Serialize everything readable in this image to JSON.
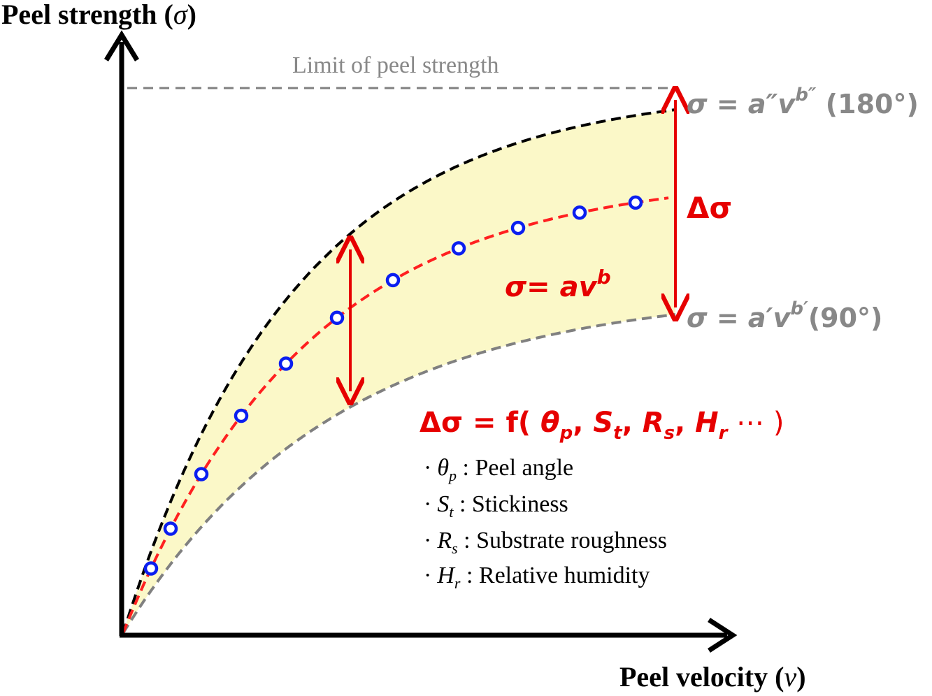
{
  "axes": {
    "y_label": "Peel strength (",
    "y_symbol": "σ",
    "y_close": ")",
    "x_label": "Peel velocity (",
    "x_symbol": "v",
    "x_close": ")"
  },
  "limit_label": "Limit of peel strength",
  "curves": {
    "upper": {
      "sym": "σ",
      "eq": " = a″v",
      "exp": "b″",
      "angle": " (180°)"
    },
    "lower": {
      "sym": "σ",
      "eq": " = a′v",
      "exp": "b′",
      "angle": "(90°)"
    },
    "middle": {
      "text": "σ= av",
      "exp": "b"
    }
  },
  "delta": {
    "label": "Δσ",
    "formula": {
      "lhs": "Δσ = f(",
      "terms": [
        {
          "sym": "θ",
          "sub": "p"
        },
        {
          "sym": "S",
          "sub": "t"
        },
        {
          "sym": "R",
          "sub": "s"
        },
        {
          "sym": "H",
          "sub": "r"
        }
      ],
      "tail": " ⋯ )"
    }
  },
  "legend": [
    {
      "bullet": "·",
      "sym": "θ",
      "sub": "p",
      "desc": " : Peel angle"
    },
    {
      "bullet": "·",
      "sym": "S",
      "sub": "t",
      "desc": " : Stickiness"
    },
    {
      "bullet": "·",
      "sym": "R",
      "sub": "s",
      "desc": " : Substrate roughness"
    },
    {
      "bullet": "·",
      "sym": "H",
      "sub": "r",
      "desc": " : Relative humidity"
    }
  ],
  "colors": {
    "band_fill": "#fbf8c8",
    "upper_curve": "#000000",
    "lower_curve": "#808080",
    "middle_curve": "#ff2020",
    "points": "#0a1ef0",
    "arrows": "#e60000",
    "grey_text": "#888888",
    "red_text": "#e60000"
  },
  "chart_data": {
    "type": "scatter",
    "markers": 10
  }
}
